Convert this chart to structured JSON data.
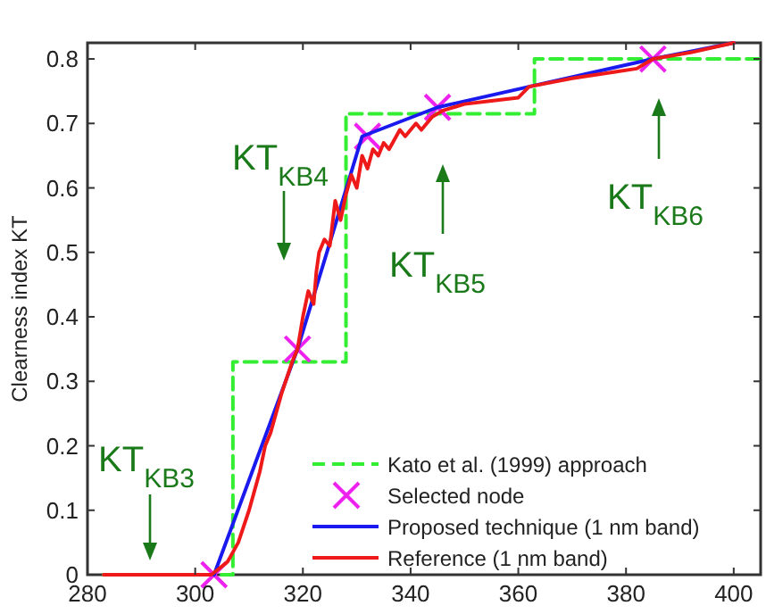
{
  "chart_data": {
    "type": "line",
    "ylabel": "Clearness index KT",
    "xlim": [
      280,
      405
    ],
    "ylim": [
      0,
      0.825
    ],
    "xticks": [
      280,
      300,
      320,
      340,
      360,
      380,
      400
    ],
    "yticks": [
      0,
      0.1,
      0.2,
      0.3,
      0.4,
      0.5,
      0.6,
      0.7,
      0.8
    ],
    "grid": false,
    "legend": "bottom right",
    "annotations": [
      "KT$_{KB3}$",
      "KT$_{KB4}$",
      "KT$_{KB5}$",
      "KT$_{KB6}$"
    ],
    "series": [
      {
        "name": "Kato et al. (1999) approach",
        "type": "step",
        "color": "#33ee33",
        "line_style": "dashed",
        "x": [
          283,
          307,
          328,
          363,
          405
        ],
        "values": [
          0,
          0.33,
          0.715,
          0.8,
          0.8
        ]
      },
      {
        "name": "Selected node",
        "type": "scatter",
        "marker": "cross",
        "color": "#ee22ee",
        "x": [
          303.5,
          319,
          332,
          345,
          385
        ],
        "values": [
          0,
          0.35,
          0.68,
          0.725,
          0.8
        ]
      },
      {
        "name": "Proposed technique (1 nm band)",
        "color": "#1a1aee",
        "line_style": "solid",
        "x": [
          303.5,
          319,
          331,
          345,
          362,
          385,
          400
        ],
        "values": [
          0,
          0.35,
          0.68,
          0.725,
          0.757,
          0.8,
          0.825
        ]
      },
      {
        "name": "Reference (1 nm band)",
        "color": "#ee1a1a",
        "line_style": "solid",
        "x": [
          283,
          303,
          306,
          308,
          310,
          312,
          313,
          314,
          316,
          318,
          319,
          320,
          321,
          322,
          322.5,
          323,
          324,
          325,
          326,
          327,
          328,
          329,
          330,
          331,
          332,
          333,
          334,
          335,
          336,
          338,
          339,
          341,
          342,
          344,
          346,
          350,
          355,
          360,
          362,
          370,
          378,
          382,
          385,
          392,
          400
        ],
        "values": [
          0,
          0,
          0.02,
          0.05,
          0.1,
          0.16,
          0.2,
          0.22,
          0.28,
          0.33,
          0.35,
          0.4,
          0.44,
          0.42,
          0.47,
          0.5,
          0.52,
          0.51,
          0.58,
          0.55,
          0.59,
          0.62,
          0.6,
          0.65,
          0.63,
          0.66,
          0.65,
          0.67,
          0.66,
          0.69,
          0.68,
          0.7,
          0.69,
          0.71,
          0.72,
          0.73,
          0.735,
          0.74,
          0.757,
          0.77,
          0.78,
          0.785,
          0.8,
          0.81,
          0.825
        ]
      }
    ]
  }
}
